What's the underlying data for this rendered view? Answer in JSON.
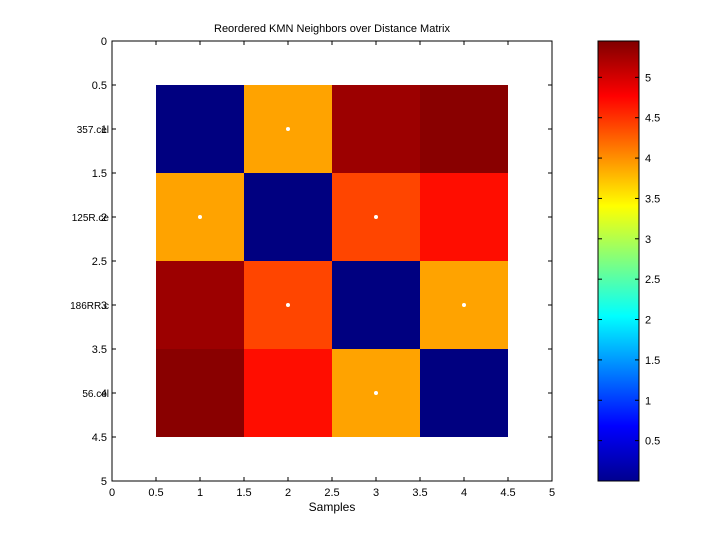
{
  "chart_data": {
    "type": "heatmap",
    "title": "Reordered KMN Neighbors over Distance Matrix",
    "xlabel": "Samples",
    "ylabel": "",
    "xlim": [
      0,
      5
    ],
    "ylim": [
      0,
      5
    ],
    "x_ticks": [
      "0",
      "0.5",
      "1",
      "1.5",
      "2",
      "2.5",
      "3",
      "3.5",
      "4",
      "4.5",
      "5"
    ],
    "y_ticks": [
      "0",
      "0.5",
      "",
      "1.5",
      "",
      "2.5",
      "",
      "3.5",
      "",
      "4.5",
      "5"
    ],
    "y_tick_overlay": [
      {
        "number": "1",
        "label": "357.cel"
      },
      {
        "number": "2",
        "label": "125R.ce"
      },
      {
        "number": "3",
        "label": "186RR.c"
      },
      {
        "number": "4",
        "label": "56.cel"
      }
    ],
    "matrix": [
      [
        0.0,
        3.9,
        5.3,
        5.4
      ],
      [
        3.9,
        0.0,
        4.4,
        4.7
      ],
      [
        5.3,
        4.4,
        0.0,
        3.9
      ],
      [
        5.4,
        4.7,
        3.9,
        0.0
      ]
    ],
    "neighbor_markers": [
      {
        "row": 1,
        "col": 2
      },
      {
        "row": 2,
        "col": 1
      },
      {
        "row": 2,
        "col": 3
      },
      {
        "row": 3,
        "col": 2
      },
      {
        "row": 3,
        "col": 4
      },
      {
        "row": 4,
        "col": 3
      }
    ],
    "colorbar": {
      "colormap": "jet",
      "range": [
        0,
        5.45
      ],
      "ticks": [
        "0.5",
        "1",
        "1.5",
        "2",
        "2.5",
        "3",
        "3.5",
        "4",
        "4.5",
        "5"
      ]
    }
  }
}
